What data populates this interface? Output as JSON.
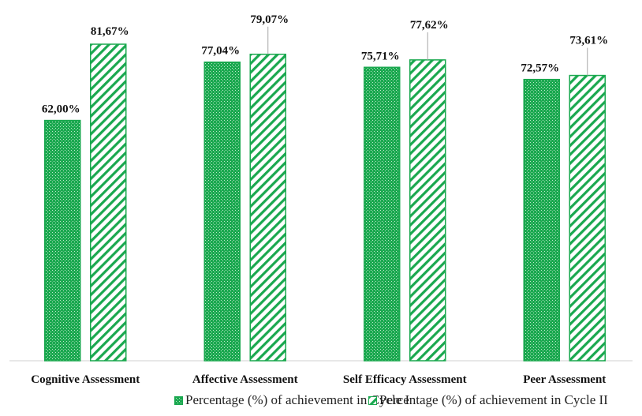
{
  "chart_data": {
    "type": "bar",
    "title": "",
    "xlabel": "",
    "ylabel": "",
    "ylim": [
      0,
      90
    ],
    "grid": false,
    "legend_position": "bottom",
    "categories": [
      "Cognitive Assessment",
      "Affective Assessment",
      "Self Efficacy Assessment",
      "Peer Assessment"
    ],
    "series": [
      {
        "name": "Percentage (%) of achievement in Cycle I",
        "values": [
          62.0,
          77.04,
          75.71,
          72.57
        ],
        "labels": [
          "62,00%",
          "77,04%",
          "75,71%",
          "72,57%"
        ],
        "color": "#1aa84f",
        "pattern": "dots"
      },
      {
        "name": "Percentage (%) of achievement in Cycle II",
        "values": [
          81.67,
          79.07,
          77.62,
          73.61
        ],
        "labels": [
          "81,67%",
          "79,07%",
          "77,62%",
          "73,61%"
        ],
        "color": "#1aa84f",
        "pattern": "diagonal-stripes"
      }
    ]
  }
}
